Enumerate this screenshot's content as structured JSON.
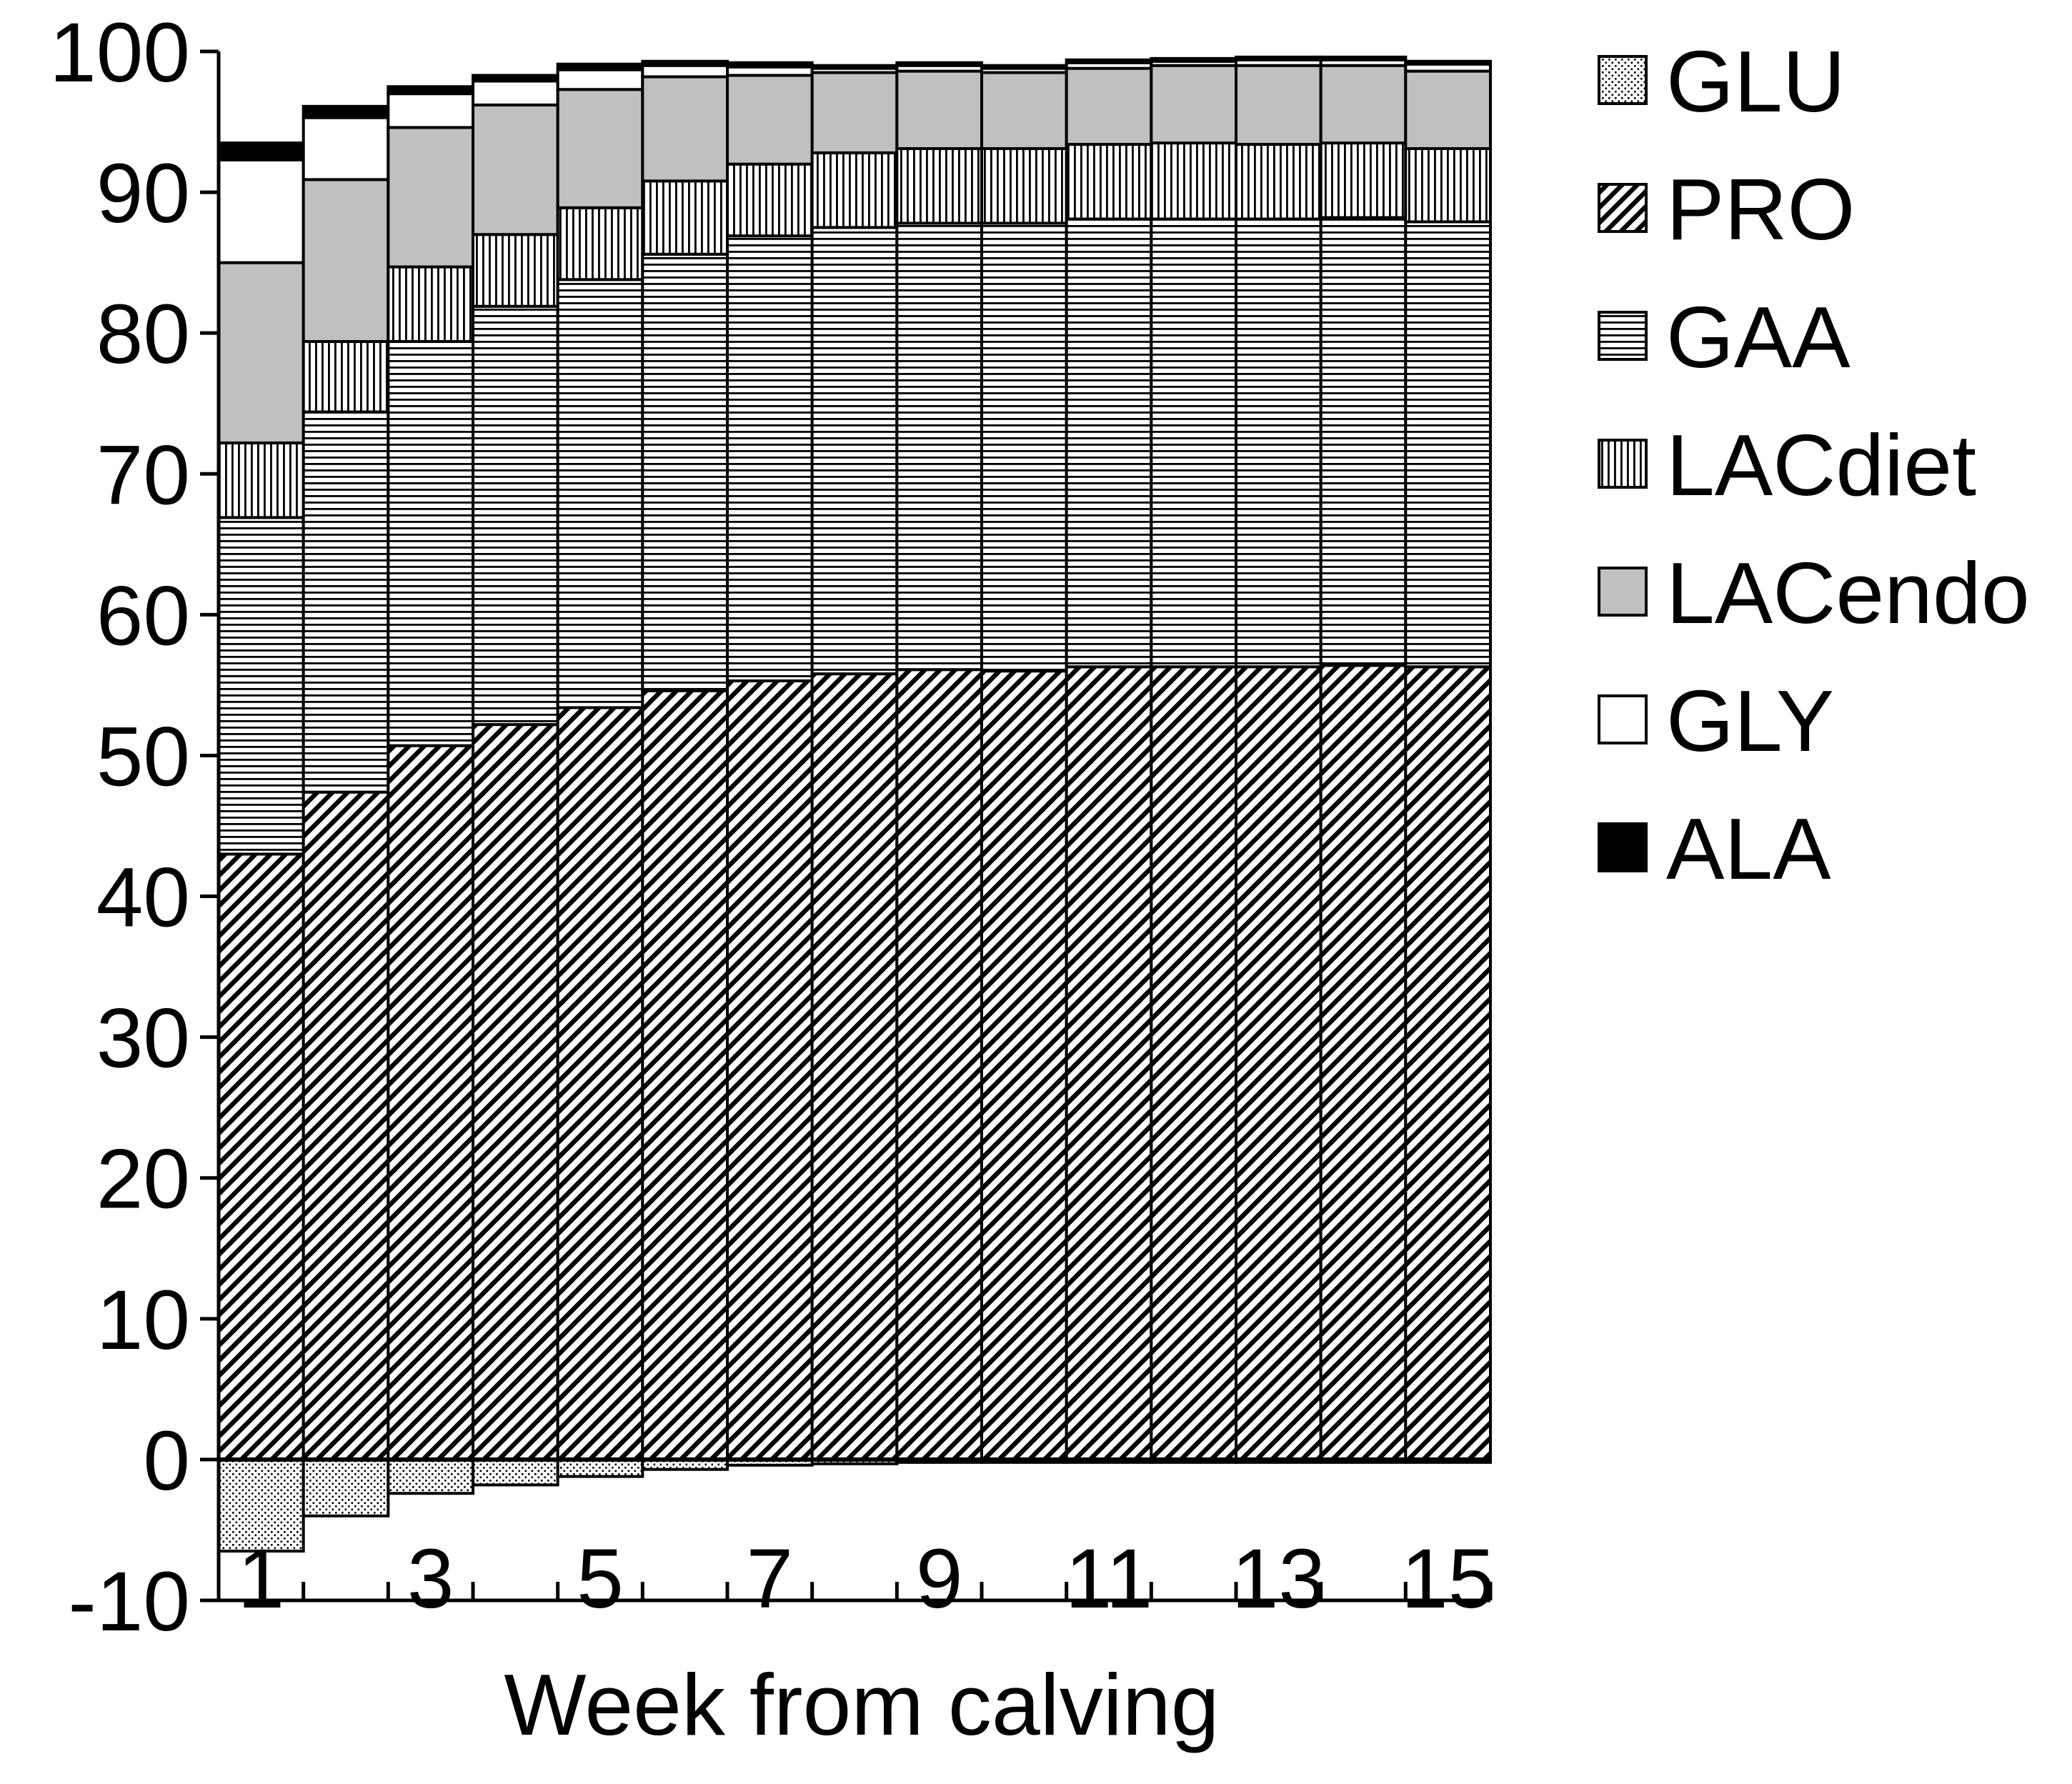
{
  "chart_data": {
    "type": "bar",
    "stacked": true,
    "title": "",
    "xlabel": "Week from calving",
    "ylabel": "",
    "ylim": [
      -10,
      100
    ],
    "yticks": [
      -10,
      0,
      10,
      20,
      30,
      40,
      50,
      60,
      70,
      80,
      90,
      100
    ],
    "categories": [
      1,
      2,
      3,
      4,
      5,
      6,
      7,
      8,
      9,
      10,
      11,
      12,
      13,
      14,
      15
    ],
    "xtick_labels": [
      "1",
      "3",
      "5",
      "7",
      "9",
      "11",
      "13",
      "15"
    ],
    "legend_position": "right",
    "series": [
      {
        "name": "GLU",
        "pattern": "dots",
        "values": [
          -6.5,
          -4.0,
          -2.4,
          -1.8,
          -1.2,
          -0.7,
          -0.4,
          -0.3,
          -0.2,
          -0.2,
          -0.2,
          -0.2,
          -0.2,
          -0.2,
          -0.2
        ]
      },
      {
        "name": "PRO",
        "pattern": "diag",
        "values": [
          43.0,
          47.4,
          50.7,
          52.2,
          53.4,
          54.6,
          55.3,
          55.8,
          56.1,
          56.0,
          56.3,
          56.3,
          56.3,
          56.4,
          56.3
        ]
      },
      {
        "name": "GAA",
        "pattern": "hlines",
        "values": [
          23.9,
          27.0,
          28.7,
          29.7,
          30.4,
          31.0,
          31.6,
          31.7,
          31.7,
          31.8,
          31.8,
          31.8,
          31.8,
          31.8,
          31.6
        ]
      },
      {
        "name": "LACdiet",
        "pattern": "vlines",
        "values": [
          5.3,
          5.0,
          5.3,
          5.1,
          5.1,
          5.2,
          5.1,
          5.3,
          5.3,
          5.3,
          5.3,
          5.4,
          5.3,
          5.3,
          5.2
        ]
      },
      {
        "name": "LACendo",
        "pattern": "gray",
        "values": [
          12.8,
          11.5,
          9.9,
          9.2,
          8.4,
          7.4,
          6.3,
          5.7,
          5.5,
          5.4,
          5.4,
          5.5,
          5.6,
          5.5,
          5.5
        ]
      },
      {
        "name": "GLY",
        "pattern": "white",
        "values": [
          7.3,
          4.4,
          2.4,
          1.7,
          1.4,
          0.8,
          0.6,
          0.3,
          0.4,
          0.3,
          0.4,
          0.3,
          0.4,
          0.4,
          0.5
        ]
      },
      {
        "name": "ALA",
        "pattern": "black",
        "values": [
          1.2,
          0.8,
          0.5,
          0.4,
          0.4,
          0.3,
          0.3,
          0.2,
          0.2,
          0.2,
          0.2,
          0.2,
          0.2,
          0.2,
          0.2
        ]
      }
    ]
  }
}
